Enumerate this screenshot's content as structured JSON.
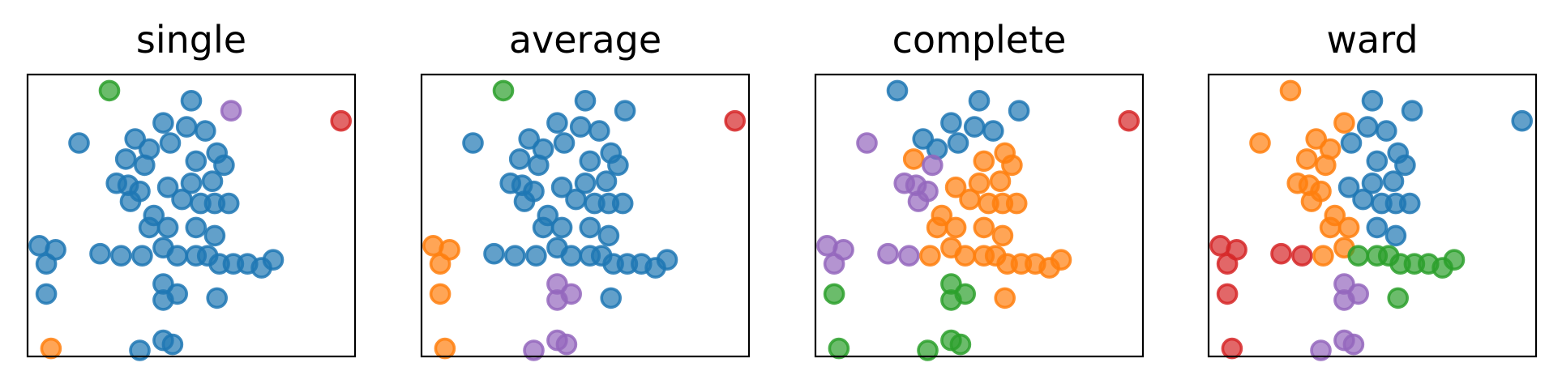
{
  "chart_data": [
    {
      "type": "scatter",
      "title": "single",
      "xlim": [
        -3.5,
        3.5
      ],
      "ylim": [
        -3.5,
        3.5
      ],
      "grid": false,
      "axes_ticks": false,
      "points": [
        [
          -1.75,
          3.1,
          1
        ],
        [
          0.0,
          2.85,
          0
        ],
        [
          0.85,
          2.6,
          3
        ],
        [
          3.2,
          2.35,
          2
        ],
        [
          -0.6,
          2.3,
          0
        ],
        [
          -0.1,
          2.2,
          0
        ],
        [
          0.3,
          2.1,
          0
        ],
        [
          -1.2,
          1.9,
          0
        ],
        [
          -0.9,
          1.65,
          0
        ],
        [
          -0.45,
          1.8,
          0
        ],
        [
          -2.4,
          1.8,
          0
        ],
        [
          0.55,
          1.55,
          0
        ],
        [
          -1.4,
          1.4,
          0
        ],
        [
          0.1,
          1.35,
          0
        ],
        [
          -1.0,
          1.25,
          0
        ],
        [
          0.7,
          1.25,
          0
        ],
        [
          -1.6,
          0.8,
          0
        ],
        [
          -1.35,
          0.75,
          0
        ],
        [
          -1.1,
          0.6,
          0
        ],
        [
          -0.5,
          0.7,
          0
        ],
        [
          0.0,
          0.8,
          0
        ],
        [
          0.45,
          0.85,
          0
        ],
        [
          -0.2,
          0.4,
          0
        ],
        [
          0.2,
          0.3,
          0
        ],
        [
          0.5,
          0.3,
          0
        ],
        [
          0.8,
          0.3,
          0
        ],
        [
          -1.3,
          0.35,
          0
        ],
        [
          -0.8,
          0.0,
          0
        ],
        [
          -0.5,
          -0.3,
          0
        ],
        [
          0.1,
          -0.3,
          0
        ],
        [
          0.5,
          -0.5,
          0
        ],
        [
          -0.9,
          -0.3,
          0
        ],
        [
          -3.25,
          -0.75,
          0
        ],
        [
          -2.9,
          -0.85,
          0
        ],
        [
          -3.1,
          -1.2,
          0
        ],
        [
          -3.1,
          -1.95,
          0
        ],
        [
          -1.95,
          -0.95,
          0
        ],
        [
          -1.5,
          -1.0,
          0
        ],
        [
          -1.05,
          -1.0,
          0
        ],
        [
          -0.6,
          -0.8,
          0
        ],
        [
          -0.3,
          -1.0,
          0
        ],
        [
          0.1,
          -1.0,
          0
        ],
        [
          0.35,
          -1.0,
          0
        ],
        [
          0.6,
          -1.2,
          0
        ],
        [
          0.9,
          -1.2,
          0
        ],
        [
          1.2,
          -1.2,
          0
        ],
        [
          1.5,
          -1.3,
          0
        ],
        [
          1.75,
          -1.1,
          0
        ],
        [
          -0.6,
          -1.7,
          0
        ],
        [
          -0.3,
          -1.95,
          0
        ],
        [
          -0.6,
          -2.1,
          0
        ],
        [
          0.55,
          -2.05,
          0
        ],
        [
          -3.0,
          -3.3,
          4
        ],
        [
          -1.1,
          -3.35,
          0
        ],
        [
          -0.6,
          -3.1,
          0
        ],
        [
          -0.4,
          -3.2,
          0
        ]
      ]
    },
    {
      "type": "scatter",
      "title": "average",
      "xlim": [
        -3.5,
        3.5
      ],
      "ylim": [
        -3.5,
        3.5
      ],
      "grid": false,
      "axes_ticks": false,
      "points": [
        [
          -1.75,
          3.1,
          1
        ],
        [
          0.0,
          2.85,
          0
        ],
        [
          0.85,
          2.6,
          0
        ],
        [
          3.2,
          2.35,
          2
        ],
        [
          -0.6,
          2.3,
          0
        ],
        [
          -0.1,
          2.2,
          0
        ],
        [
          0.3,
          2.1,
          0
        ],
        [
          -1.2,
          1.9,
          0
        ],
        [
          -0.9,
          1.65,
          0
        ],
        [
          -0.45,
          1.8,
          0
        ],
        [
          -2.4,
          1.8,
          0
        ],
        [
          0.55,
          1.55,
          0
        ],
        [
          -1.4,
          1.4,
          0
        ],
        [
          0.1,
          1.35,
          0
        ],
        [
          -1.0,
          1.25,
          0
        ],
        [
          0.7,
          1.25,
          0
        ],
        [
          -1.6,
          0.8,
          0
        ],
        [
          -1.35,
          0.75,
          0
        ],
        [
          -1.1,
          0.6,
          0
        ],
        [
          -0.5,
          0.7,
          0
        ],
        [
          0.0,
          0.8,
          0
        ],
        [
          0.45,
          0.85,
          0
        ],
        [
          -0.2,
          0.4,
          0
        ],
        [
          0.2,
          0.3,
          0
        ],
        [
          0.5,
          0.3,
          0
        ],
        [
          0.8,
          0.3,
          0
        ],
        [
          -1.3,
          0.35,
          0
        ],
        [
          -0.8,
          0.0,
          0
        ],
        [
          -0.5,
          -0.3,
          0
        ],
        [
          0.1,
          -0.3,
          0
        ],
        [
          0.5,
          -0.5,
          0
        ],
        [
          -0.9,
          -0.3,
          0
        ],
        [
          -3.25,
          -0.75,
          4
        ],
        [
          -2.9,
          -0.85,
          4
        ],
        [
          -3.1,
          -1.2,
          4
        ],
        [
          -3.1,
          -1.95,
          4
        ],
        [
          -1.95,
          -0.95,
          0
        ],
        [
          -1.5,
          -1.0,
          0
        ],
        [
          -1.05,
          -1.0,
          0
        ],
        [
          -0.6,
          -0.8,
          0
        ],
        [
          -0.3,
          -1.0,
          0
        ],
        [
          0.1,
          -1.0,
          0
        ],
        [
          0.35,
          -1.0,
          0
        ],
        [
          0.6,
          -1.2,
          0
        ],
        [
          0.9,
          -1.2,
          0
        ],
        [
          1.2,
          -1.2,
          0
        ],
        [
          1.5,
          -1.3,
          0
        ],
        [
          1.75,
          -1.1,
          0
        ],
        [
          -0.6,
          -1.7,
          3
        ],
        [
          -0.3,
          -1.95,
          3
        ],
        [
          -0.6,
          -2.1,
          3
        ],
        [
          0.55,
          -2.05,
          0
        ],
        [
          -3.0,
          -3.3,
          4
        ],
        [
          -1.1,
          -3.35,
          3
        ],
        [
          -0.6,
          -3.1,
          3
        ],
        [
          -0.4,
          -3.2,
          3
        ]
      ]
    },
    {
      "type": "scatter",
      "title": "complete",
      "xlim": [
        -3.5,
        3.5
      ],
      "ylim": [
        -3.5,
        3.5
      ],
      "grid": false,
      "axes_ticks": false,
      "points": [
        [
          -1.75,
          3.1,
          0
        ],
        [
          0.0,
          2.85,
          0
        ],
        [
          0.85,
          2.6,
          0
        ],
        [
          3.2,
          2.35,
          2
        ],
        [
          -0.6,
          2.3,
          0
        ],
        [
          -0.1,
          2.2,
          0
        ],
        [
          0.3,
          2.1,
          0
        ],
        [
          -1.2,
          1.9,
          0
        ],
        [
          -0.9,
          1.65,
          0
        ],
        [
          -0.45,
          1.8,
          0
        ],
        [
          -2.4,
          1.8,
          3
        ],
        [
          0.55,
          1.55,
          4
        ],
        [
          -1.4,
          1.4,
          4
        ],
        [
          0.1,
          1.35,
          4
        ],
        [
          -1.0,
          1.25,
          3
        ],
        [
          0.7,
          1.25,
          4
        ],
        [
          -1.6,
          0.8,
          3
        ],
        [
          -1.35,
          0.75,
          3
        ],
        [
          -1.1,
          0.6,
          3
        ],
        [
          -0.5,
          0.7,
          4
        ],
        [
          0.0,
          0.8,
          4
        ],
        [
          0.45,
          0.85,
          4
        ],
        [
          -0.2,
          0.4,
          4
        ],
        [
          0.2,
          0.3,
          4
        ],
        [
          0.5,
          0.3,
          4
        ],
        [
          0.8,
          0.3,
          4
        ],
        [
          -1.3,
          0.35,
          3
        ],
        [
          -0.8,
          0.0,
          4
        ],
        [
          -0.5,
          -0.3,
          4
        ],
        [
          0.1,
          -0.3,
          4
        ],
        [
          0.5,
          -0.5,
          4
        ],
        [
          -0.9,
          -0.3,
          4
        ],
        [
          -3.25,
          -0.75,
          3
        ],
        [
          -2.9,
          -0.85,
          3
        ],
        [
          -3.1,
          -1.2,
          3
        ],
        [
          -3.1,
          -1.95,
          1
        ],
        [
          -1.95,
          -0.95,
          3
        ],
        [
          -1.5,
          -1.0,
          3
        ],
        [
          -1.05,
          -1.0,
          4
        ],
        [
          -0.6,
          -0.8,
          4
        ],
        [
          -0.3,
          -1.0,
          4
        ],
        [
          0.1,
          -1.0,
          4
        ],
        [
          0.35,
          -1.0,
          4
        ],
        [
          0.6,
          -1.2,
          4
        ],
        [
          0.9,
          -1.2,
          4
        ],
        [
          1.2,
          -1.2,
          4
        ],
        [
          1.5,
          -1.3,
          4
        ],
        [
          1.75,
          -1.1,
          4
        ],
        [
          -0.6,
          -1.7,
          1
        ],
        [
          -0.3,
          -1.95,
          1
        ],
        [
          -0.6,
          -2.1,
          1
        ],
        [
          0.55,
          -2.05,
          4
        ],
        [
          -3.0,
          -3.3,
          1
        ],
        [
          -1.1,
          -3.35,
          1
        ],
        [
          -0.6,
          -3.1,
          1
        ],
        [
          -0.4,
          -3.2,
          1
        ]
      ]
    },
    {
      "type": "scatter",
      "title": "ward",
      "xlim": [
        -3.5,
        3.5
      ],
      "ylim": [
        -3.5,
        3.5
      ],
      "grid": false,
      "axes_ticks": false,
      "points": [
        [
          -1.75,
          3.1,
          4
        ],
        [
          0.0,
          2.85,
          0
        ],
        [
          0.85,
          2.6,
          0
        ],
        [
          3.2,
          2.35,
          0
        ],
        [
          -0.6,
          2.3,
          4
        ],
        [
          -0.1,
          2.2,
          0
        ],
        [
          0.3,
          2.1,
          0
        ],
        [
          -1.2,
          1.9,
          4
        ],
        [
          -0.9,
          1.65,
          4
        ],
        [
          -0.45,
          1.8,
          0
        ],
        [
          -2.4,
          1.8,
          4
        ],
        [
          0.55,
          1.55,
          0
        ],
        [
          -1.4,
          1.4,
          4
        ],
        [
          0.1,
          1.35,
          0
        ],
        [
          -1.0,
          1.25,
          4
        ],
        [
          0.7,
          1.25,
          0
        ],
        [
          -1.6,
          0.8,
          4
        ],
        [
          -1.35,
          0.75,
          4
        ],
        [
          -1.1,
          0.6,
          4
        ],
        [
          -0.5,
          0.7,
          0
        ],
        [
          0.0,
          0.8,
          0
        ],
        [
          0.45,
          0.85,
          0
        ],
        [
          -0.2,
          0.4,
          0
        ],
        [
          0.2,
          0.3,
          0
        ],
        [
          0.5,
          0.3,
          0
        ],
        [
          0.8,
          0.3,
          0
        ],
        [
          -1.3,
          0.35,
          4
        ],
        [
          -0.8,
          0.0,
          4
        ],
        [
          -0.5,
          -0.3,
          4
        ],
        [
          0.1,
          -0.3,
          0
        ],
        [
          0.5,
          -0.5,
          0
        ],
        [
          -0.9,
          -0.3,
          4
        ],
        [
          -3.25,
          -0.75,
          2
        ],
        [
          -2.9,
          -0.85,
          2
        ],
        [
          -3.1,
          -1.2,
          2
        ],
        [
          -3.1,
          -1.95,
          2
        ],
        [
          -1.95,
          -0.95,
          2
        ],
        [
          -1.5,
          -1.0,
          2
        ],
        [
          -1.05,
          -1.0,
          4
        ],
        [
          -0.6,
          -0.8,
          4
        ],
        [
          -0.3,
          -1.0,
          1
        ],
        [
          0.1,
          -1.0,
          1
        ],
        [
          0.35,
          -1.0,
          1
        ],
        [
          0.6,
          -1.2,
          1
        ],
        [
          0.9,
          -1.2,
          1
        ],
        [
          1.2,
          -1.2,
          1
        ],
        [
          1.5,
          -1.3,
          1
        ],
        [
          1.75,
          -1.1,
          1
        ],
        [
          -0.6,
          -1.7,
          3
        ],
        [
          -0.3,
          -1.95,
          3
        ],
        [
          -0.6,
          -2.1,
          3
        ],
        [
          0.55,
          -2.05,
          1
        ],
        [
          -3.0,
          -3.3,
          2
        ],
        [
          -1.1,
          -3.35,
          3
        ],
        [
          -0.6,
          -3.1,
          3
        ],
        [
          -0.4,
          -3.2,
          3
        ]
      ]
    }
  ],
  "cluster_colors": [
    "#1f77b4",
    "#2ca02c",
    "#d62728",
    "#9467bd",
    "#ff7f0e"
  ],
  "point_opacity": 0.7
}
